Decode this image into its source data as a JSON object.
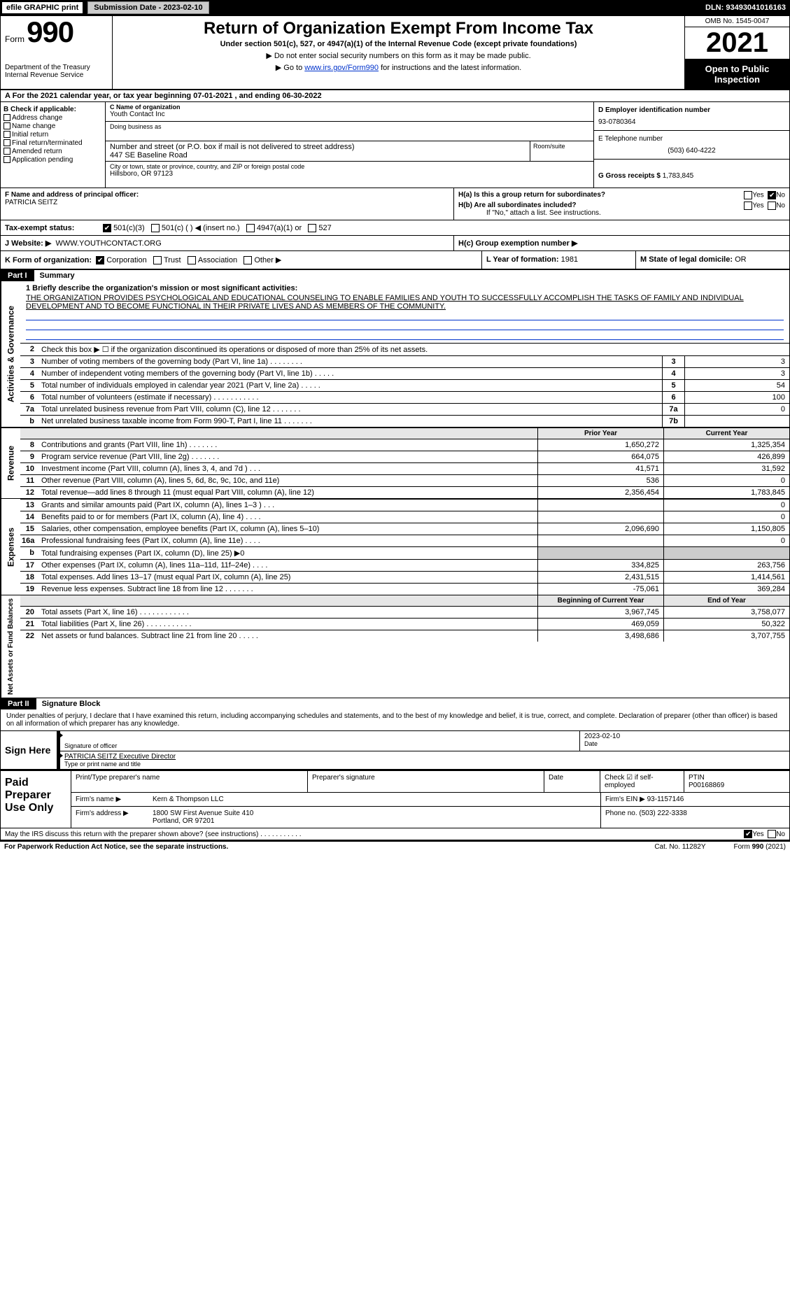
{
  "topbar": {
    "efile": "efile GRAPHIC print",
    "submission_label": "Submission Date - 2023-02-10",
    "dln": "DLN: 93493041016163"
  },
  "header": {
    "form_word": "Form",
    "form_num": "990",
    "title": "Return of Organization Exempt From Income Tax",
    "subtitle": "Under section 501(c), 527, or 4947(a)(1) of the Internal Revenue Code (except private foundations)",
    "note1": "▶ Do not enter social security numbers on this form as it may be made public.",
    "note2_pre": "▶ Go to ",
    "note2_link": "www.irs.gov/Form990",
    "note2_post": " for instructions and the latest information.",
    "dept": "Department of the Treasury",
    "irs": "Internal Revenue Service",
    "omb": "OMB No. 1545-0047",
    "year": "2021",
    "open": "Open to Public Inspection"
  },
  "rowA": {
    "text": "A For the 2021 calendar year, or tax year beginning 07-01-2021     , and ending 06-30-2022"
  },
  "colB": {
    "hdr": "B Check if applicable:",
    "items": [
      "Address change",
      "Name change",
      "Initial return",
      "Final return/terminated",
      "Amended return",
      "Application pending"
    ]
  },
  "colC": {
    "c_lab": "C Name of organization",
    "org": "Youth Contact Inc",
    "dba_lab": "Doing business as",
    "dba": "",
    "addr_lab": "Number and street (or P.O. box if mail is not delivered to street address)",
    "addr": "447 SE Baseline Road",
    "room_lab": "Room/suite",
    "city_lab": "City or town, state or province, country, and ZIP or foreign postal code",
    "city": "Hillsboro, OR  97123"
  },
  "colR": {
    "d_lab": "D Employer identification number",
    "ein": "93-0780364",
    "e_lab": "E Telephone number",
    "phone": "(503) 640-4222",
    "g_lab": "G Gross receipts $",
    "gross": "1,783,845"
  },
  "rowF": {
    "f_lab": "F  Name and address of principal officer:",
    "name": "PATRICIA SEITZ"
  },
  "rowH": {
    "ha": "H(a)  Is this a group return for subordinates?",
    "hb": "H(b)  Are all subordinates included?",
    "hb2": "If \"No,\" attach a list. See instructions.",
    "hc": "H(c)  Group exemption number ▶",
    "yes": "Yes",
    "no": "No"
  },
  "rowI": {
    "lab": "Tax-exempt status:",
    "o1": "501(c)(3)",
    "o2": "501(c) (   ) ◀ (insert no.)",
    "o3": "4947(a)(1) or",
    "o4": "527"
  },
  "rowJ": {
    "lab": "J    Website: ▶",
    "val": "WWW.YOUTHCONTACT.ORG"
  },
  "rowK": {
    "k": "K Form of organization:",
    "corp": "Corporation",
    "trust": "Trust",
    "assoc": "Association",
    "other": "Other ▶",
    "l_lab": "L Year of formation:",
    "l_val": "1981",
    "m_lab": "M State of legal domicile:",
    "m_val": "OR"
  },
  "part1": {
    "num": "Part I",
    "title": "Summary",
    "q1_lab": "1  Briefly describe the organization's mission or most significant activities:",
    "mission": "THE ORGANIZATION PROVIDES PSYCHOLOGICAL AND EDUCATIONAL COUNSELING TO ENABLE FAMILIES AND YOUTH TO SUCCESSFULLY ACCOMPLISH THE TASKS OF FAMILY AND INDIVIDUAL DEVELOPMENT AND TO BECOME FUNCTIONAL IN THEIR PRIVATE LIVES AND AS MEMBERS OF THE COMMUNITY.",
    "side_gov": "Activities & Governance",
    "side_rev": "Revenue",
    "side_exp": "Expenses",
    "side_net": "Net Assets or Fund Balances"
  },
  "govrows": [
    {
      "n": "2",
      "t": "Check this box ▶ ☐  if the organization discontinued its operations or disposed of more than 25% of its net assets.",
      "bx": "",
      "v": ""
    },
    {
      "n": "3",
      "t": "Number of voting members of the governing body (Part VI, line 1a)   .    .    .    .    .    .    .    .",
      "bx": "3",
      "v": "3"
    },
    {
      "n": "4",
      "t": "Number of independent voting members of the governing body (Part VI, line 1b)  .    .    .    .    .",
      "bx": "4",
      "v": "3"
    },
    {
      "n": "5",
      "t": "Total number of individuals employed in calendar year 2021 (Part V, line 2a)   .    .    .    .    .",
      "bx": "5",
      "v": "54"
    },
    {
      "n": "6",
      "t": "Total number of volunteers (estimate if necessary)    .    .    .    .    .    .    .    .    .    .    .",
      "bx": "6",
      "v": "100"
    },
    {
      "n": "7a",
      "t": "Total unrelated business revenue from Part VIII, column (C), line 12   .    .    .    .    .    .    .",
      "bx": "7a",
      "v": "0"
    },
    {
      "n": "b",
      "t": "Net unrelated business taxable income from Form 990-T, Part I, line 11   .    .    .    .    .    .    .",
      "bx": "7b",
      "v": ""
    }
  ],
  "finhdr": {
    "c1": "Prior Year",
    "c2": "Current Year"
  },
  "revrows": [
    {
      "n": "8",
      "t": "Contributions and grants (Part VIII, line 1h)   .    .    .    .    .    .    .",
      "c1": "1,650,272",
      "c2": "1,325,354"
    },
    {
      "n": "9",
      "t": "Program service revenue (Part VIII, line 2g)   .    .    .    .    .    .    .",
      "c1": "664,075",
      "c2": "426,899"
    },
    {
      "n": "10",
      "t": "Investment income (Part VIII, column (A), lines 3, 4, and 7d )   .    .    .",
      "c1": "41,571",
      "c2": "31,592"
    },
    {
      "n": "11",
      "t": "Other revenue (Part VIII, column (A), lines 5, 6d, 8c, 9c, 10c, and 11e)",
      "c1": "536",
      "c2": "0"
    },
    {
      "n": "12",
      "t": "Total revenue—add lines 8 through 11 (must equal Part VIII, column (A), line 12)",
      "c1": "2,356,454",
      "c2": "1,783,845"
    }
  ],
  "exprows": [
    {
      "n": "13",
      "t": "Grants and similar amounts paid (Part IX, column (A), lines 1–3 )   .    .    .",
      "c1": "",
      "c2": "0"
    },
    {
      "n": "14",
      "t": "Benefits paid to or for members (Part IX, column (A), line 4)   .    .    .    .",
      "c1": "",
      "c2": "0"
    },
    {
      "n": "15",
      "t": "Salaries, other compensation, employee benefits (Part IX, column (A), lines 5–10)",
      "c1": "2,096,690",
      "c2": "1,150,805"
    },
    {
      "n": "16a",
      "t": "Professional fundraising fees (Part IX, column (A), line 11e)   .    .    .    .",
      "c1": "",
      "c2": "0"
    },
    {
      "n": "b",
      "t": "Total fundraising expenses (Part IX, column (D), line 25) ▶0",
      "c1": "GREY",
      "c2": "GREY"
    },
    {
      "n": "17",
      "t": "Other expenses (Part IX, column (A), lines 11a–11d, 11f–24e)   .    .    .    .",
      "c1": "334,825",
      "c2": "263,756"
    },
    {
      "n": "18",
      "t": "Total expenses. Add lines 13–17 (must equal Part IX, column (A), line 25)",
      "c1": "2,431,515",
      "c2": "1,414,561"
    },
    {
      "n": "19",
      "t": "Revenue less expenses. Subtract line 18 from line 12 .    .    .    .    .    .    .",
      "c1": "-75,061",
      "c2": "369,284"
    }
  ],
  "nethdr": {
    "c1": "Beginning of Current Year",
    "c2": "End of Year"
  },
  "netrows": [
    {
      "n": "20",
      "t": "Total assets (Part X, line 16)   .    .    .    .    .    .    .    .    .    .    .    .",
      "c1": "3,967,745",
      "c2": "3,758,077"
    },
    {
      "n": "21",
      "t": "Total liabilities (Part X, line 26)   .    .    .    .    .    .    .    .    .    .    .",
      "c1": "469,059",
      "c2": "50,322"
    },
    {
      "n": "22",
      "t": "Net assets or fund balances. Subtract line 21 from line 20   .    .    .    .    .",
      "c1": "3,498,686",
      "c2": "3,707,755"
    }
  ],
  "part2": {
    "num": "Part II",
    "title": "Signature Block",
    "decl": "Under penalties of perjury, I declare that I have examined this return, including accompanying schedules and statements, and to the best of my knowledge and belief, it is true, correct, and complete. Declaration of preparer (other than officer) is based on all information of which preparer has any knowledge."
  },
  "sign": {
    "lab": "Sign Here",
    "sigoff": "Signature of officer",
    "date": "2023-02-10",
    "date_lab": "Date",
    "name": "PATRICIA SEITZ  Executive Director",
    "name_lab": "Type or print name and title"
  },
  "paid": {
    "lab": "Paid Preparer Use Only",
    "h1": "Print/Type preparer's name",
    "h2": "Preparer's signature",
    "h3": "Date",
    "h4": "Check ☑ if self-employed",
    "h5_lab": "PTIN",
    "h5": "P00168869",
    "firm_lab": "Firm's name    ▶",
    "firm": "Kern & Thompson LLC",
    "ein_lab": "Firm's EIN ▶",
    "ein": "93-1157146",
    "addr_lab": "Firm's address ▶",
    "addr1": "1800 SW First Avenue Suite 410",
    "addr2": "Portland, OR  97201",
    "phone_lab": "Phone no.",
    "phone": "(503) 222-3338"
  },
  "footer": {
    "q": "May the IRS discuss this return with the preparer shown above? (see instructions)   .    .    .    .    .    .    .    .    .    .    .",
    "yes": "Yes",
    "no": "No",
    "pra": "For Paperwork Reduction Act Notice, see the separate instructions.",
    "cat": "Cat. No. 11282Y",
    "form": "Form 990 (2021)"
  }
}
